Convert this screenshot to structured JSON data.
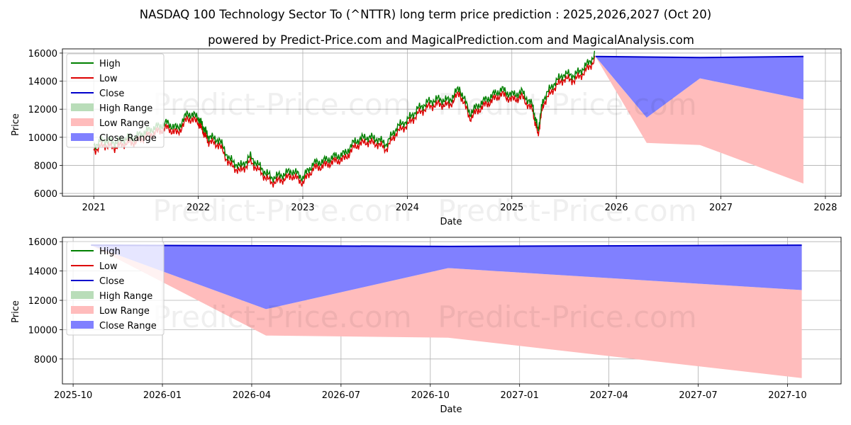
{
  "title": "NASDAQ 100 Technology Sector To (^NTTR) long term price prediction : 2025,2026,2027 (Oct 20)",
  "subtitle": "powered by Predict-Price.com and MagicalPrediction.com and MagicalAnalysis.com",
  "watermark": "Predict-Price.com",
  "colors": {
    "high": "#008000",
    "low": "#dd0000",
    "close": "#0000cc",
    "high_range": "#b9ddb9",
    "low_range": "#ffbcbc",
    "close_range": "#8080ff",
    "grid": "#b0b0b0"
  },
  "legend": {
    "high": "High",
    "low": "Low",
    "close": "Close",
    "high_range": "High Range",
    "low_range": "Low Range",
    "close_range": "Close Range"
  },
  "chart_data": [
    {
      "type": "line",
      "title": "NASDAQ 100 Technology Sector To (^NTTR) long term price prediction : 2025,2026,2027 (Oct 20)",
      "xlabel": "Date",
      "ylabel": "Price",
      "xlim": [
        2020.7,
        2028.15
      ],
      "ylim": [
        5800,
        16300
      ],
      "x_ticks": [
        2021,
        2022,
        2023,
        2024,
        2025,
        2026,
        2027,
        2028
      ],
      "x_tick_labels": [
        "2021",
        "2022",
        "2023",
        "2024",
        "2025",
        "2026",
        "2027",
        "2028"
      ],
      "y_ticks": [
        6000,
        8000,
        10000,
        12000,
        14000,
        16000
      ],
      "y_tick_labels": [
        "6000",
        "8000",
        "10000",
        "12000",
        "14000",
        "16000"
      ],
      "grid": true,
      "legend_position": "upper-left",
      "history": {
        "x": [
          2021.0,
          2021.1,
          2021.2,
          2021.3,
          2021.4,
          2021.5,
          2021.6,
          2021.7,
          2021.8,
          2021.9,
          2022.0,
          2022.05,
          2022.1,
          2022.2,
          2022.3,
          2022.4,
          2022.5,
          2022.6,
          2022.7,
          2022.8,
          2022.9,
          2023.0,
          2023.1,
          2023.2,
          2023.3,
          2023.4,
          2023.5,
          2023.6,
          2023.7,
          2023.8,
          2023.9,
          2024.0,
          2024.1,
          2024.2,
          2024.3,
          2024.4,
          2024.5,
          2024.6,
          2024.7,
          2024.8,
          2024.9,
          2025.0,
          2025.1,
          2025.2,
          2025.25,
          2025.3,
          2025.4,
          2025.5,
          2025.6,
          2025.7,
          2025.8
        ],
        "close": [
          9200,
          9600,
          9400,
          9700,
          9800,
          10200,
          10500,
          10800,
          10400,
          11500,
          11200,
          10500,
          9800,
          9600,
          8200,
          7700,
          8400,
          7600,
          6900,
          7100,
          7400,
          6900,
          7900,
          8100,
          8400,
          8600,
          9500,
          9800,
          9700,
          9300,
          10500,
          11000,
          11800,
          12300,
          12500,
          12400,
          13300,
          11500,
          12200,
          12700,
          13200,
          12800,
          13000,
          12000,
          10300,
          12500,
          13600,
          14300,
          14200,
          14800,
          15700
        ],
        "band": 220
      },
      "forecast": {
        "x": [
          2025.8,
          2026.29,
          2026.8,
          2027.79
        ],
        "close": [
          15760,
          15720,
          15680,
          15760
        ],
        "close_range_low": [
          15760,
          11400,
          14200,
          12700
        ],
        "low_range_low": [
          15760,
          9600,
          9450,
          6700
        ]
      }
    },
    {
      "type": "line",
      "xlabel": "Date",
      "ylabel": "Price",
      "xlim": [
        2025.72,
        2027.9
      ],
      "ylim": [
        6300,
        16300
      ],
      "x_ticks": [
        2025.75,
        2026.0,
        2026.25,
        2026.5,
        2026.75,
        2027.0,
        2027.25,
        2027.5,
        2027.75
      ],
      "x_tick_labels": [
        "2025-10",
        "2026-01",
        "2026-04",
        "2026-07",
        "2026-10",
        "2027-01",
        "2027-04",
        "2027-07",
        "2027-10"
      ],
      "y_ticks": [
        8000,
        10000,
        12000,
        14000,
        16000
      ],
      "y_tick_labels": [
        "8000",
        "10000",
        "12000",
        "14000",
        "16000"
      ],
      "grid": true,
      "legend_position": "upper-left",
      "forecast": {
        "x": [
          2025.8,
          2026.29,
          2026.8,
          2027.79
        ],
        "close": [
          15760,
          15720,
          15680,
          15760
        ],
        "close_range_low": [
          15760,
          11400,
          14200,
          12700
        ],
        "low_range_low": [
          15760,
          9600,
          9450,
          6700
        ]
      }
    }
  ]
}
